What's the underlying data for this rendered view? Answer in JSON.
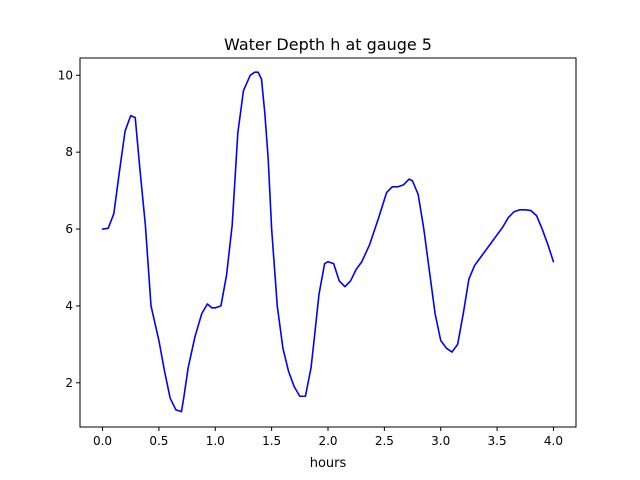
{
  "chart_data": {
    "type": "line",
    "title": "Water Depth h at gauge 5",
    "xlabel": "hours",
    "ylabel": "",
    "xlim": [
      -0.2,
      4.2
    ],
    "ylim": [
      0.85,
      10.45
    ],
    "xticks": [
      0.0,
      0.5,
      1.0,
      1.5,
      2.0,
      2.5,
      3.0,
      3.5,
      4.0
    ],
    "xtick_labels": [
      "0.0",
      "0.5",
      "1.0",
      "1.5",
      "2.0",
      "2.5",
      "3.0",
      "3.5",
      "4.0"
    ],
    "yticks": [
      2,
      4,
      6,
      8,
      10
    ],
    "ytick_labels": [
      "2",
      "4",
      "6",
      "8",
      "10"
    ],
    "grid": false,
    "legend": "none",
    "series": [
      {
        "color": "#0000ff",
        "x": [
          0.0,
          0.05,
          0.1,
          0.15,
          0.2,
          0.25,
          0.29,
          0.33,
          0.38,
          0.43,
          0.5,
          0.55,
          0.6,
          0.65,
          0.7,
          0.72,
          0.76,
          0.82,
          0.88,
          0.93,
          0.97,
          1.0,
          1.05,
          1.1,
          1.15,
          1.2,
          1.25,
          1.28,
          1.31,
          1.35,
          1.38,
          1.41,
          1.44,
          1.47,
          1.5,
          1.55,
          1.6,
          1.65,
          1.7,
          1.75,
          1.8,
          1.85,
          1.88,
          1.92,
          1.97,
          2.0,
          2.05,
          2.1,
          2.15,
          2.2,
          2.25,
          2.3,
          2.37,
          2.45,
          2.52,
          2.57,
          2.62,
          2.67,
          2.72,
          2.75,
          2.8,
          2.85,
          2.9,
          2.95,
          3.0,
          3.05,
          3.1,
          3.15,
          3.2,
          3.25,
          3.3,
          3.35,
          3.4,
          3.45,
          3.5,
          3.55,
          3.6,
          3.65,
          3.7,
          3.75,
          3.8,
          3.85,
          3.9,
          3.95,
          4.0
        ],
        "y": [
          6.0,
          6.02,
          6.4,
          7.5,
          8.55,
          8.95,
          8.9,
          7.6,
          6.1,
          4.0,
          3.1,
          2.3,
          1.6,
          1.3,
          1.25,
          1.6,
          2.4,
          3.2,
          3.8,
          4.05,
          3.95,
          3.95,
          4.0,
          4.8,
          6.1,
          8.5,
          9.6,
          9.8,
          10.0,
          10.08,
          10.08,
          9.9,
          9.0,
          7.8,
          6.0,
          4.0,
          2.9,
          2.3,
          1.9,
          1.65,
          1.65,
          2.4,
          3.2,
          4.3,
          5.1,
          5.15,
          5.1,
          4.65,
          4.5,
          4.65,
          4.95,
          5.15,
          5.6,
          6.3,
          6.95,
          7.1,
          7.1,
          7.15,
          7.3,
          7.25,
          6.9,
          6.0,
          4.9,
          3.8,
          3.1,
          2.9,
          2.8,
          3.0,
          3.8,
          4.7,
          5.05,
          5.25,
          5.45,
          5.65,
          5.85,
          6.05,
          6.3,
          6.45,
          6.5,
          6.5,
          6.48,
          6.35,
          6.0,
          5.6,
          5.15
        ]
      }
    ]
  }
}
